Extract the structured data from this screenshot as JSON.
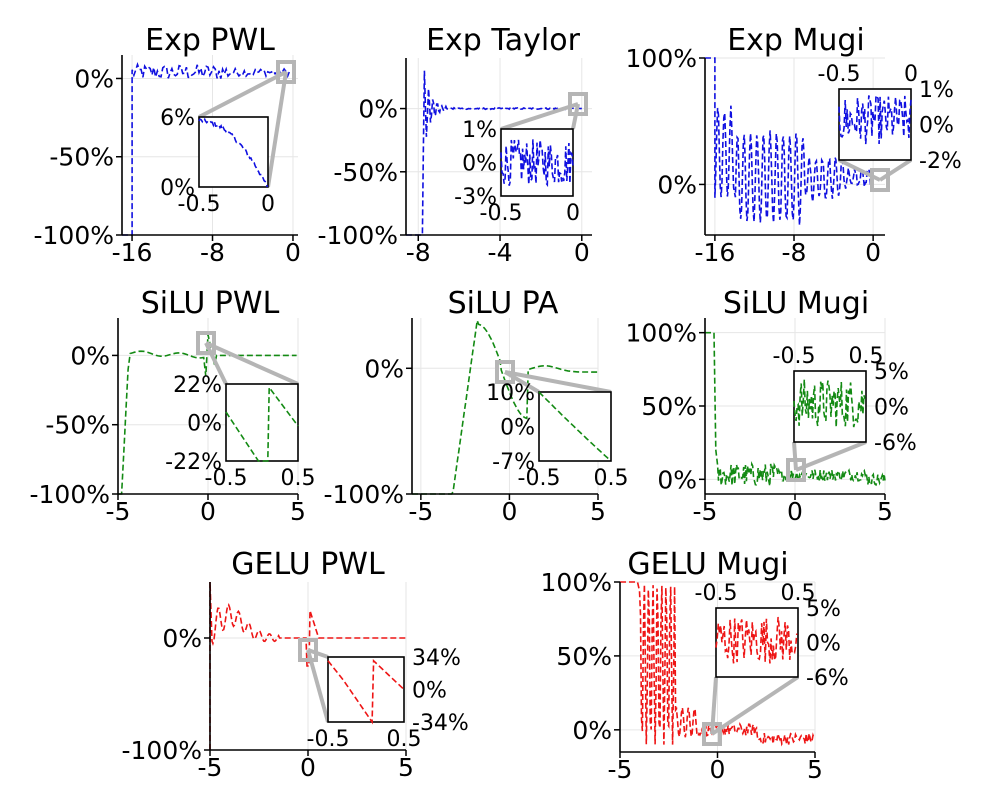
{
  "colors": {
    "exp": "#1010e0",
    "silu": "#138a13",
    "gelu": "#ee1515",
    "zoom": "#b5b5b5"
  },
  "chart_data": [
    {
      "type": "line",
      "id": "exp-pwl",
      "title": "Exp PWL",
      "color": "#1010e0",
      "function": "exp-pwl",
      "xlim": [
        -17,
        0.5
      ],
      "ylim": [
        -100,
        15
      ],
      "xticks": [
        -16,
        -8,
        0
      ],
      "xtick_labels": [
        "-16",
        "-8",
        "0"
      ],
      "yticks": [
        0,
        -50,
        -100
      ],
      "ytick_labels": [
        "0%",
        "-50%",
        "-100%"
      ],
      "inset": {
        "xrange": [
          -0.5,
          0
        ],
        "xtick_labels": [
          "-0.5",
          "0"
        ],
        "yrange": [
          0,
          6
        ],
        "ytick_labels": [
          "6%",
          "0%"
        ]
      }
    },
    {
      "type": "line",
      "id": "exp-taylor",
      "title": "Exp Taylor",
      "color": "#1010e0",
      "function": "exp-taylor",
      "xlim": [
        -8.6,
        0.5
      ],
      "ylim": [
        -100,
        40
      ],
      "xticks": [
        -8,
        -4,
        0
      ],
      "xtick_labels": [
        "-8",
        "-4",
        "0"
      ],
      "yticks": [
        0,
        -50,
        -100
      ],
      "ytick_labels": [
        "0%",
        "-50%",
        "-100%"
      ],
      "inset": {
        "xrange": [
          -0.5,
          0
        ],
        "xtick_labels": [
          "-0.5",
          "0"
        ],
        "yrange": [
          -3,
          1
        ],
        "ytick_labels": [
          "1%",
          "0%",
          "-3%"
        ]
      }
    },
    {
      "type": "line",
      "id": "exp-mugi",
      "title": "Exp Mugi",
      "color": "#1010e0",
      "function": "exp-mugi",
      "xlim": [
        -17,
        1.2
      ],
      "ylim": [
        -40,
        100
      ],
      "xticks": [
        -16,
        -8,
        0
      ],
      "xtick_labels": [
        "-16",
        "-8",
        "0"
      ],
      "yticks": [
        100,
        0
      ],
      "ytick_labels": [
        "100%",
        "0%"
      ],
      "inset": {
        "xrange": [
          -0.5,
          0
        ],
        "xtick_labels": [
          "-0.5",
          "0"
        ],
        "yrange": [
          -2,
          1
        ],
        "ytick_labels": [
          "1%",
          "0%",
          "-2%"
        ]
      }
    },
    {
      "type": "line",
      "id": "silu-pwl",
      "title": "SiLU PWL",
      "color": "#138a13",
      "function": "silu-pwl",
      "xlim": [
        -5,
        5
      ],
      "ylim": [
        -100,
        27
      ],
      "xticks": [
        -5,
        0,
        5
      ],
      "xtick_labels": [
        "-5",
        "0",
        "5"
      ],
      "yticks": [
        0,
        -50,
        -100
      ],
      "ytick_labels": [
        "0%",
        "-50%",
        "-100%"
      ],
      "inset": {
        "xrange": [
          -0.5,
          0.5
        ],
        "xtick_labels": [
          "-0.5",
          "0.5"
        ],
        "yrange": [
          -22,
          22
        ],
        "ytick_labels": [
          "22%",
          "0%",
          "-22%"
        ]
      }
    },
    {
      "type": "line",
      "id": "silu-pa",
      "title": "SiLU PA",
      "color": "#138a13",
      "function": "silu-pa",
      "xlim": [
        -5.5,
        5
      ],
      "ylim": [
        -100,
        40
      ],
      "xticks": [
        -5,
        0,
        5
      ],
      "xtick_labels": [
        "-5",
        "0",
        "5"
      ],
      "yticks": [
        0,
        -100
      ],
      "ytick_labels": [
        "0%",
        "-100%"
      ],
      "inset": {
        "xrange": [
          -0.5,
          0.5
        ],
        "xtick_labels": [
          "-0.5",
          "0.5"
        ],
        "yrange": [
          -7,
          10
        ],
        "ytick_labels": [
          "10%",
          "0%",
          "-7%"
        ]
      }
    },
    {
      "type": "line",
      "id": "silu-mugi",
      "title": "SiLU Mugi",
      "color": "#138a13",
      "function": "silu-mugi",
      "xlim": [
        -5,
        5
      ],
      "ylim": [
        -10,
        110
      ],
      "xticks": [
        -5,
        0,
        5
      ],
      "xtick_labels": [
        "-5",
        "0",
        "5"
      ],
      "yticks": [
        100,
        50,
        0
      ],
      "ytick_labels": [
        "100%",
        "50%",
        "0%"
      ],
      "inset": {
        "xrange": [
          -0.5,
          0.5
        ],
        "xtick_labels": [
          "-0.5",
          "0.5"
        ],
        "yrange": [
          -6,
          5
        ],
        "ytick_labels": [
          "5%",
          "0%",
          "-6%"
        ]
      }
    },
    {
      "type": "line",
      "id": "gelu-pwl",
      "title": "GELU PWL",
      "color": "#ee1515",
      "function": "gelu-pwl",
      "xlim": [
        -5,
        5
      ],
      "ylim": [
        -100,
        50
      ],
      "xticks": [
        -5,
        0,
        5
      ],
      "xtick_labels": [
        "-5",
        "0",
        "5"
      ],
      "yticks": [
        0,
        -100
      ],
      "ytick_labels": [
        "0%",
        "-100%"
      ],
      "inset": {
        "xrange": [
          -0.5,
          0.5
        ],
        "xtick_labels": [
          "-0.5",
          "0.5"
        ],
        "yrange": [
          -34,
          34
        ],
        "ytick_labels": [
          "34%",
          "0%",
          "-34%"
        ]
      }
    },
    {
      "type": "line",
      "id": "gelu-mugi",
      "title": "GELU Mugi",
      "color": "#ee1515",
      "function": "gelu-mugi",
      "xlim": [
        -5,
        5
      ],
      "ylim": [
        -15,
        100
      ],
      "xticks": [
        -5,
        0,
        5
      ],
      "xtick_labels": [
        "-5",
        "0",
        "5"
      ],
      "yticks": [
        100,
        50,
        0
      ],
      "ytick_labels": [
        "100%",
        "50%",
        "0%"
      ],
      "inset": {
        "xrange": [
          -0.5,
          0.5
        ],
        "xtick_labels": [
          "-0.5",
          "0.5"
        ],
        "yrange": [
          -6,
          5
        ],
        "ytick_labels": [
          "5%",
          "0%",
          "-6%"
        ]
      }
    }
  ]
}
